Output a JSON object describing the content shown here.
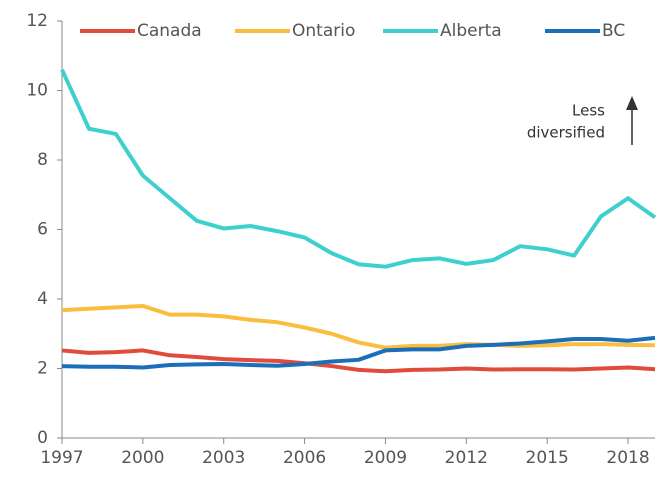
{
  "chart_data": {
    "type": "line",
    "x": [
      1997,
      1998,
      1999,
      2000,
      2001,
      2002,
      2003,
      2004,
      2005,
      2006,
      2007,
      2008,
      2009,
      2010,
      2011,
      2012,
      2013,
      2014,
      2015,
      2016,
      2017,
      2018,
      2019
    ],
    "series": [
      {
        "name": "Canada",
        "color": "#e04b3b",
        "values": [
          2.52,
          2.45,
          2.47,
          2.52,
          2.38,
          2.33,
          2.27,
          2.24,
          2.22,
          2.15,
          2.07,
          1.96,
          1.92,
          1.96,
          1.97,
          2.0,
          1.97,
          1.98,
          1.98,
          1.97,
          2.0,
          2.03,
          1.98
        ]
      },
      {
        "name": "Ontario",
        "color": "#fbbd3f",
        "values": [
          3.68,
          3.72,
          3.76,
          3.8,
          3.55,
          3.55,
          3.5,
          3.4,
          3.33,
          3.18,
          3.0,
          2.75,
          2.6,
          2.65,
          2.65,
          2.7,
          2.68,
          2.65,
          2.67,
          2.7,
          2.7,
          2.68,
          2.67
        ]
      },
      {
        "name": "Alberta",
        "color": "#3ecfcf",
        "values": [
          10.6,
          8.9,
          8.75,
          7.55,
          6.9,
          6.25,
          6.03,
          6.1,
          5.95,
          5.77,
          5.32,
          5.0,
          4.93,
          5.12,
          5.17,
          5.01,
          5.12,
          5.52,
          5.43,
          5.25,
          6.38,
          6.9,
          6.35
        ]
      },
      {
        "name": "BC",
        "color": "#1a6fb8",
        "values": [
          2.07,
          2.05,
          2.05,
          2.03,
          2.1,
          2.12,
          2.13,
          2.1,
          2.08,
          2.13,
          2.2,
          2.25,
          2.52,
          2.55,
          2.55,
          2.65,
          2.68,
          2.72,
          2.78,
          2.85,
          2.85,
          2.8,
          2.88
        ]
      }
    ],
    "xlim": [
      1997,
      2019
    ],
    "xticks": [
      1997,
      2000,
      2003,
      2006,
      2009,
      2012,
      2015,
      2018
    ],
    "ylim": [
      0,
      12
    ],
    "yticks": [
      0,
      2,
      4,
      6,
      8,
      10,
      12
    ],
    "annotation": [
      "Less",
      "diversified"
    ]
  }
}
